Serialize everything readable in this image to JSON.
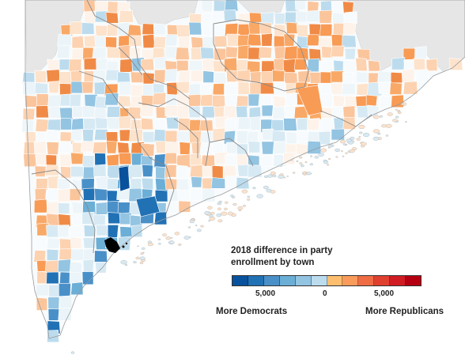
{
  "legend": {
    "title_line1": "2018 difference in party",
    "title_line2": "enrollment by town",
    "tick_left": "5,000",
    "tick_mid": "0",
    "tick_right": "5,000",
    "label_left": "More Democrats",
    "label_right": "More Republicans",
    "colors": [
      "#08519c",
      "#2171b5",
      "#4a90c8",
      "#6baed6",
      "#93c4e2",
      "#bcdcee",
      "#fdbf6f",
      "#f99b5a",
      "#ef6c44",
      "#e0402f",
      "#d11c24",
      "#b50011"
    ]
  },
  "map_colors": {
    "land_gray": "#e6e6e6",
    "water": "#ffffff",
    "county_border": "#8a8a8a",
    "highlight_black": "#000000"
  }
}
